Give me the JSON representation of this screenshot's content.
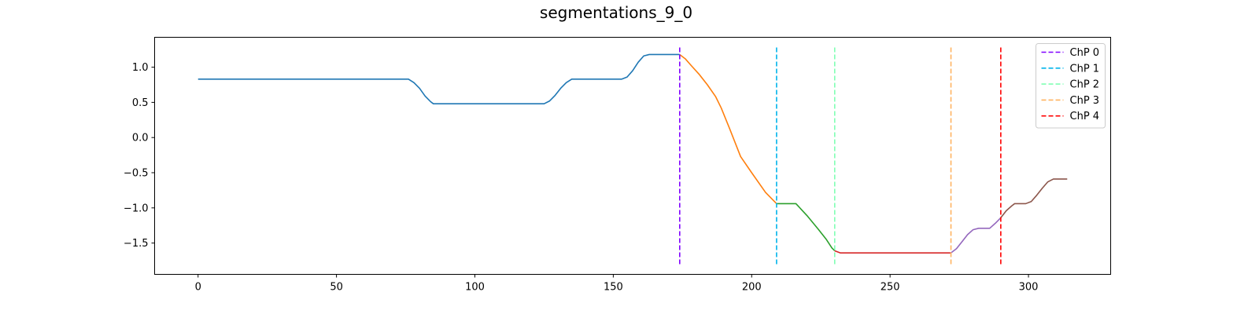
{
  "chart_data": {
    "type": "line",
    "title": "segmentations_9_0",
    "xlabel": "",
    "ylabel": "",
    "xlim": [
      -15.7,
      329.7
    ],
    "ylim": [
      -1.945,
      1.425
    ],
    "xticks": [
      0,
      50,
      100,
      150,
      200,
      250,
      300
    ],
    "yticks": [
      -1.5,
      -1.0,
      -0.5,
      0.0,
      0.5,
      1.0
    ],
    "ytick_labels": [
      "−1.5",
      "−1.0",
      "−0.5",
      "0.0",
      "0.5",
      "1.0"
    ],
    "grid": false,
    "legend_position": "top-right",
    "series": [
      {
        "color": "#1f77b4",
        "points": [
          [
            0,
            0.83
          ],
          [
            76,
            0.83
          ],
          [
            78,
            0.78
          ],
          [
            80,
            0.7
          ],
          [
            82,
            0.59
          ],
          [
            84,
            0.51
          ],
          [
            85,
            0.48
          ],
          [
            125,
            0.48
          ],
          [
            127,
            0.52
          ],
          [
            129,
            0.6
          ],
          [
            131,
            0.7
          ],
          [
            133,
            0.78
          ],
          [
            135,
            0.83
          ],
          [
            153,
            0.83
          ],
          [
            155,
            0.86
          ],
          [
            157,
            0.95
          ],
          [
            159,
            1.07
          ],
          [
            161,
            1.16
          ],
          [
            163,
            1.18
          ],
          [
            174,
            1.18
          ]
        ]
      },
      {
        "color": "#ff7f0e",
        "points": [
          [
            174,
            1.18
          ],
          [
            176,
            1.12
          ],
          [
            178,
            1.03
          ],
          [
            181,
            0.9
          ],
          [
            184,
            0.75
          ],
          [
            187,
            0.58
          ],
          [
            189,
            0.42
          ],
          [
            192,
            0.13
          ],
          [
            196,
            -0.27
          ],
          [
            200,
            -0.5
          ],
          [
            205,
            -0.78
          ],
          [
            209,
            -0.94
          ]
        ]
      },
      {
        "color": "#2ca02c",
        "points": [
          [
            209,
            -0.94
          ],
          [
            211,
            -0.94
          ],
          [
            216,
            -0.94
          ],
          [
            220,
            -1.11
          ],
          [
            224,
            -1.3
          ],
          [
            227,
            -1.45
          ],
          [
            229,
            -1.57
          ],
          [
            230,
            -1.61
          ]
        ]
      },
      {
        "color": "#d62728",
        "points": [
          [
            230,
            -1.61
          ],
          [
            232,
            -1.64
          ],
          [
            272,
            -1.64
          ]
        ]
      },
      {
        "color": "#9467bd",
        "points": [
          [
            272,
            -1.64
          ],
          [
            274,
            -1.58
          ],
          [
            276,
            -1.48
          ],
          [
            278,
            -1.38
          ],
          [
            280,
            -1.31
          ],
          [
            282,
            -1.29
          ],
          [
            286,
            -1.29
          ],
          [
            288,
            -1.22
          ],
          [
            290,
            -1.14
          ]
        ]
      },
      {
        "color": "#8c564b",
        "points": [
          [
            290,
            -1.14
          ],
          [
            292,
            -1.04
          ],
          [
            294,
            -0.97
          ],
          [
            295,
            -0.94
          ],
          [
            299,
            -0.94
          ],
          [
            301,
            -0.91
          ],
          [
            303,
            -0.82
          ],
          [
            305,
            -0.72
          ],
          [
            307,
            -0.63
          ],
          [
            309,
            -0.59
          ],
          [
            314,
            -0.59
          ]
        ]
      }
    ],
    "changepoints": [
      {
        "name": "ChP 0",
        "x": 174,
        "color": "#8000ff"
      },
      {
        "name": "ChP 1",
        "x": 209,
        "color": "#00b4eb"
      },
      {
        "name": "ChP 2",
        "x": 230,
        "color": "#80ffb4"
      },
      {
        "name": "ChP 3",
        "x": 272,
        "color": "#ffb360"
      },
      {
        "name": "ChP 4",
        "x": 290,
        "color": "#ff0000"
      }
    ]
  }
}
